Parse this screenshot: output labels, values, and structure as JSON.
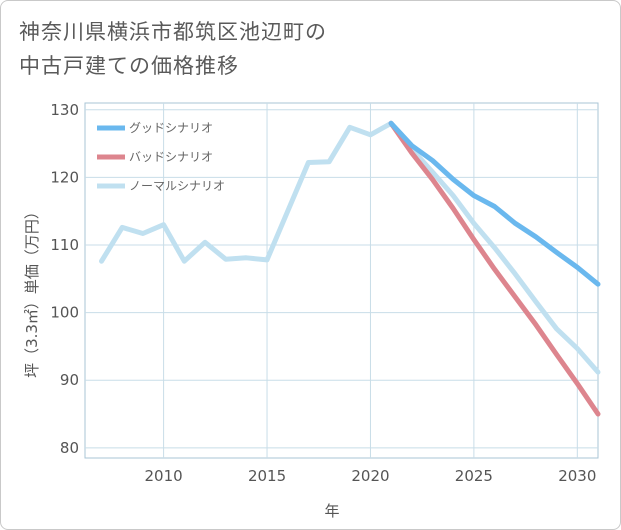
{
  "title_line1": "神奈川県横浜市都筑区池辺町の",
  "title_line2": "中古戸建ての価格推移",
  "chart_data": {
    "type": "line",
    "xlabel": "年",
    "ylabel": "坪（3.3㎡）単価（万円）",
    "xlim": [
      2006.2,
      2031
    ],
    "ylim": [
      78.5,
      131
    ],
    "xticks": [
      2010,
      2015,
      2020,
      2025,
      2030
    ],
    "yticks": [
      80,
      90,
      100,
      110,
      120,
      130
    ],
    "grid": true,
    "legend_position": "top-left",
    "series": [
      {
        "name": "グッドシナリオ",
        "color": "#6ab8ee",
        "x": [
          2021,
          2022,
          2023,
          2024,
          2025,
          2026,
          2027,
          2028,
          2029,
          2030,
          2031
        ],
        "values": [
          128.0,
          124.7,
          122.5,
          119.7,
          117.3,
          115.7,
          113.2,
          111.2,
          108.9,
          106.7,
          104.2
        ]
      },
      {
        "name": "バッドシナリオ",
        "color": "#dd858e",
        "x": [
          2021,
          2022,
          2023,
          2024,
          2025,
          2026,
          2027,
          2028,
          2029,
          2030,
          2031
        ],
        "values": [
          128.0,
          123.6,
          119.7,
          115.4,
          110.8,
          106.4,
          102.3,
          98.2,
          93.8,
          89.5,
          85.0
        ]
      },
      {
        "name": "ノーマルシナリオ",
        "color": "#c0e0f0",
        "x": [
          2007,
          2008,
          2009,
          2010,
          2011,
          2012,
          2013,
          2014,
          2015,
          2016,
          2017,
          2018,
          2019,
          2020,
          2021,
          2022,
          2023,
          2024,
          2025,
          2026,
          2027,
          2028,
          2029,
          2030,
          2031
        ],
        "values": [
          107.6,
          112.6,
          111.7,
          113.0,
          107.6,
          110.4,
          107.9,
          108.1,
          107.8,
          115.0,
          122.2,
          122.3,
          127.4,
          126.3,
          128.0,
          124.2,
          120.8,
          117.3,
          113.2,
          109.6,
          105.7,
          101.6,
          97.6,
          94.7,
          91.2
        ]
      }
    ]
  }
}
